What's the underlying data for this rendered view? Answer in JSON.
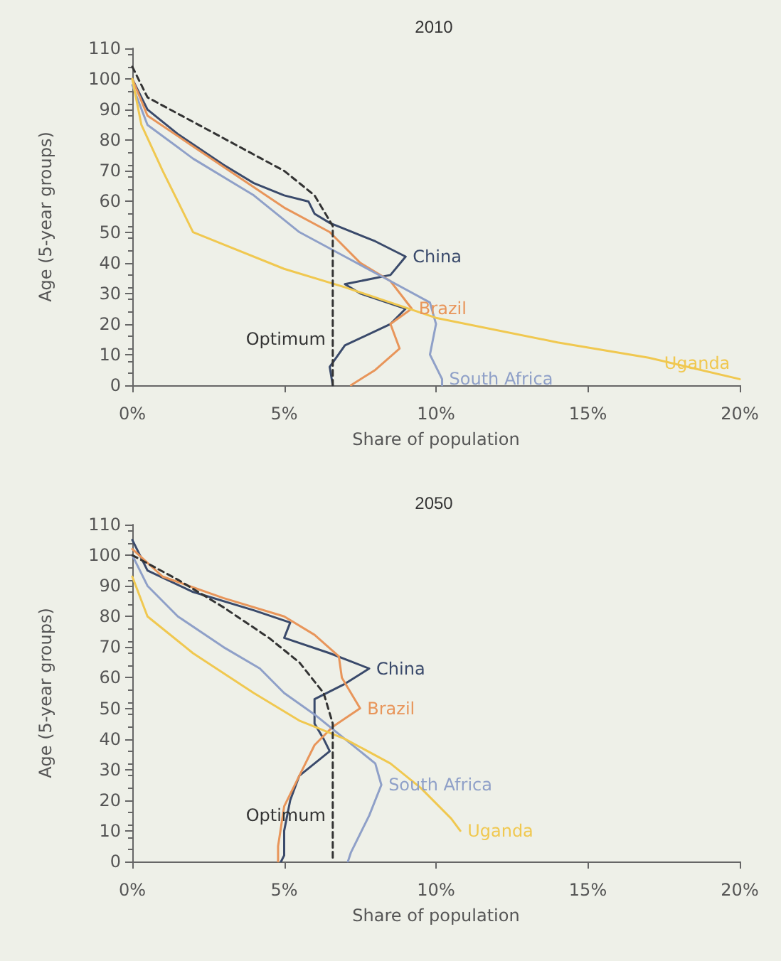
{
  "chart_data": [
    {
      "type": "line",
      "title": "2010",
      "xlabel": "Share of population",
      "ylabel": "Age (5-year groups)",
      "xlim": [
        0,
        20
      ],
      "xticks": [
        {
          "value": 0,
          "label": "0%"
        },
        {
          "value": 5,
          "label": "5%"
        },
        {
          "value": 10,
          "label": "10%"
        },
        {
          "value": 15,
          "label": "15%"
        },
        {
          "value": 20,
          "label": "20%"
        }
      ],
      "ylim": [
        0,
        110
      ],
      "yticks": [
        0,
        10,
        20,
        30,
        40,
        50,
        60,
        70,
        80,
        90,
        100,
        110
      ],
      "grid": false,
      "legend": false,
      "marker": "none",
      "series": [
        {
          "name": "China",
          "color": "#3a4a6b",
          "x": [
            0,
            0.5,
            1.5,
            3,
            4,
            5,
            5.8,
            6,
            6.5,
            8,
            9,
            8.5,
            7,
            7.5,
            9,
            8.5,
            7,
            6.5,
            6.6
          ],
          "values": [
            100,
            90,
            82,
            72,
            66,
            62,
            60,
            56,
            53,
            47,
            42,
            36,
            33,
            30,
            25,
            20,
            13,
            6,
            0
          ]
        },
        {
          "name": "Brazil",
          "color": "#e8955a",
          "x": [
            0,
            0.5,
            2,
            3.5,
            5,
            6.5,
            7.5,
            8.5,
            9.2,
            8.5,
            8.8,
            8,
            7.2
          ],
          "values": [
            100,
            88,
            78,
            68,
            58,
            50,
            40,
            34,
            25,
            20,
            12,
            5,
            0
          ]
        },
        {
          "name": "South Africa",
          "color": "#8fa0c8",
          "x": [
            0,
            0.5,
            2,
            4,
            5.5,
            7,
            8.5,
            9.8,
            10,
            9.8,
            10.2,
            10.2
          ],
          "values": [
            98,
            85,
            74,
            62,
            50,
            42,
            34,
            27,
            20,
            10,
            2,
            0
          ]
        },
        {
          "name": "Uganda",
          "color": "#f0c850",
          "x": [
            0,
            0.3,
            1,
            2,
            3,
            5,
            7,
            10,
            14,
            17,
            20
          ],
          "values": [
            100,
            85,
            70,
            50,
            46,
            38,
            32,
            22,
            14,
            9,
            2
          ]
        },
        {
          "name": "Optimum",
          "color": "#333333",
          "line_style": "dashed",
          "x": [
            0,
            0.5,
            2,
            3.5,
            5,
            6,
            6.6,
            6.6,
            6.6
          ],
          "values": [
            104,
            94,
            86,
            78,
            70,
            62,
            52,
            15,
            0
          ]
        }
      ]
    },
    {
      "type": "line",
      "title": "2050",
      "xlabel": "Share of population",
      "ylabel": "Age (5-year groups)",
      "xlim": [
        0,
        20
      ],
      "xticks": [
        {
          "value": 0,
          "label": "0%"
        },
        {
          "value": 5,
          "label": "5%"
        },
        {
          "value": 10,
          "label": "10%"
        },
        {
          "value": 15,
          "label": "15%"
        },
        {
          "value": 20,
          "label": "20%"
        }
      ],
      "ylim": [
        0,
        110
      ],
      "yticks": [
        0,
        10,
        20,
        30,
        40,
        50,
        60,
        70,
        80,
        90,
        100,
        110
      ],
      "grid": false,
      "legend": false,
      "marker": "none",
      "series": [
        {
          "name": "China",
          "color": "#3a4a6b",
          "x": [
            0,
            0.5,
            2,
            4,
            5.2,
            5,
            6.5,
            7.8,
            7,
            6,
            6,
            6.3,
            6.5,
            5.5,
            5.2,
            5,
            5,
            4.9
          ],
          "values": [
            105,
            95,
            88,
            82,
            78,
            73,
            68,
            63,
            58,
            53,
            45,
            40,
            36,
            28,
            20,
            10,
            2,
            0
          ]
        },
        {
          "name": "Brazil",
          "color": "#e8955a",
          "x": [
            0,
            1,
            3,
            5,
            6,
            6.8,
            6.9,
            7.5,
            6.6,
            6,
            5.5,
            5,
            4.8,
            4.8
          ],
          "values": [
            102,
            93,
            86,
            80,
            74,
            67,
            60,
            50,
            44,
            38,
            28,
            18,
            5,
            0
          ]
        },
        {
          "name": "South Africa",
          "color": "#8fa0c8",
          "x": [
            0,
            0.5,
            1.5,
            3,
            4.2,
            5,
            6,
            7,
            8,
            8.2,
            7.8,
            7.2,
            7.1
          ],
          "values": [
            100,
            90,
            80,
            70,
            63,
            55,
            48,
            40,
            32,
            25,
            15,
            3,
            0
          ]
        },
        {
          "name": "Uganda",
          "color": "#f0c850",
          "x": [
            0,
            0.5,
            2,
            4,
            5.5,
            7,
            8.5,
            9.5,
            10.5,
            10.8
          ],
          "values": [
            93,
            80,
            68,
            55,
            46,
            40,
            32,
            24,
            14,
            10
          ]
        },
        {
          "name": "Optimum",
          "color": "#333333",
          "line_style": "dashed",
          "x": [
            0,
            1.5,
            3,
            4.5,
            5.5,
            6.3,
            6.6,
            6.6,
            6.6
          ],
          "values": [
            100,
            92,
            83,
            73,
            65,
            55,
            45,
            15,
            0
          ]
        }
      ]
    }
  ]
}
